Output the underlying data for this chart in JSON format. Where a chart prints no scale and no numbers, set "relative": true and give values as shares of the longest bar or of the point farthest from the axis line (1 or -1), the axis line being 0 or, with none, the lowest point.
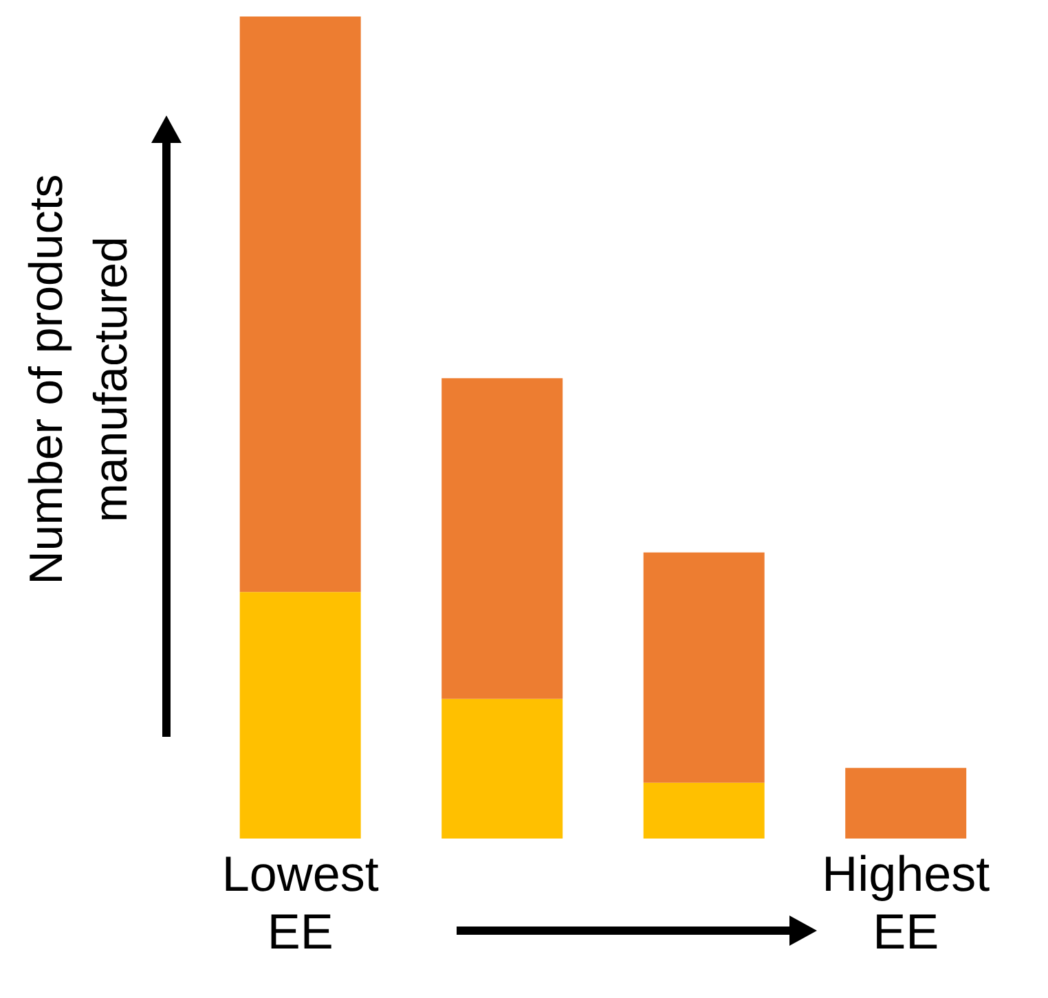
{
  "chart_data": {
    "type": "bar",
    "stacked": true,
    "relative": true,
    "ylabel": "Number of products manufactured",
    "categories": [
      "Lowest EE",
      null,
      null,
      "Highest EE"
    ],
    "series": [
      {
        "color": "#ffc000",
        "values": [
          0.3,
          0.17,
          0.068,
          0
        ]
      },
      {
        "color": "#ed7d31",
        "values": [
          0.7,
          0.39,
          0.28,
          0.086
        ]
      }
    ],
    "grid": false,
    "legend": false
  }
}
